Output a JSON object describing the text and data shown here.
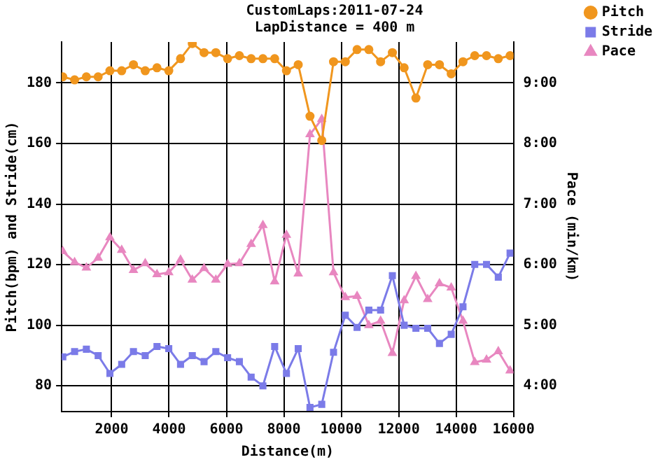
{
  "chart_data": {
    "type": "line",
    "title": "CustomLaps:2011-07-24",
    "subtitle": "LapDistance = 400 m",
    "xlabel": "Distance(m)",
    "ylabel": "Pitch(bpm) and Stride(cm)",
    "y2label": "Pace (min/km)",
    "x": [
      300,
      710,
      1120,
      1530,
      1940,
      2350,
      2760,
      3170,
      3580,
      3990,
      4400,
      4810,
      5220,
      5630,
      6040,
      6450,
      6860,
      7270,
      7680,
      8090,
      8500,
      8910,
      9320,
      9730,
      10140,
      10550,
      10960,
      11370,
      11780,
      12190,
      12600,
      13010,
      13420,
      13830,
      14240,
      14650,
      15060,
      15470,
      15880
    ],
    "xlim": [
      260,
      16000
    ],
    "xticks": [
      2000,
      4000,
      6000,
      8000,
      10000,
      12000,
      14000,
      16000
    ],
    "ylim": [
      71.5,
      193.5
    ],
    "yticks": [
      80,
      100,
      120,
      140,
      160,
      180
    ],
    "y2lim": [
      3.575,
      9.675
    ],
    "y2ticks": [
      {
        "value": 4,
        "label": "4:00"
      },
      {
        "value": 5,
        "label": "5:00"
      },
      {
        "value": 6,
        "label": "6:00"
      },
      {
        "value": 7,
        "label": "7:00"
      },
      {
        "value": 8,
        "label": "8:00"
      },
      {
        "value": 9,
        "label": "9:00"
      }
    ],
    "grid": true,
    "legend": "top right",
    "line_style": "solid",
    "series": [
      {
        "name": "Pitch",
        "color": "#f0961e",
        "marker": "circle",
        "values": [
          182,
          181,
          182,
          182,
          184,
          184,
          186,
          184,
          185,
          184,
          188,
          193,
          190,
          190,
          188,
          189,
          188,
          188,
          188,
          184,
          186,
          169,
          161,
          187,
          187,
          191,
          191,
          187,
          190,
          185,
          175,
          186,
          186,
          183,
          187,
          189,
          189,
          188,
          189
        ]
      },
      {
        "name": "Stride",
        "color": "#7b7be8",
        "marker": "square",
        "values": [
          89.6,
          91.3,
          92.1,
          90,
          84.1,
          87.1,
          91.3,
          90,
          93,
          92.3,
          87.1,
          90,
          88,
          91.3,
          89.3,
          88,
          82.9,
          80,
          93,
          84.1,
          92.3,
          72.9,
          73.9,
          91.1,
          103.3,
          99.3,
          105,
          105,
          116.4,
          100,
          99,
          99,
          94,
          97,
          106.1,
          120.1,
          120.1,
          115.9,
          123.8
        ]
      },
      {
        "name": "Pace",
        "color": "#e887c0",
        "marker": "triangle",
        "axis": "y2",
        "values": [
          6.22,
          6.04,
          5.95,
          6.11,
          6.45,
          6.24,
          5.91,
          6.02,
          5.84,
          5.87,
          6.08,
          5.75,
          5.94,
          5.75,
          6.01,
          6.02,
          6.34,
          6.65,
          5.72,
          6.49,
          5.85,
          8.15,
          8.4,
          5.87,
          5.46,
          5.48,
          5.0,
          5.07,
          4.54,
          5.41,
          5.81,
          5.43,
          5.69,
          5.62,
          5.07,
          4.39,
          4.43,
          4.57,
          4.25
        ]
      }
    ]
  }
}
